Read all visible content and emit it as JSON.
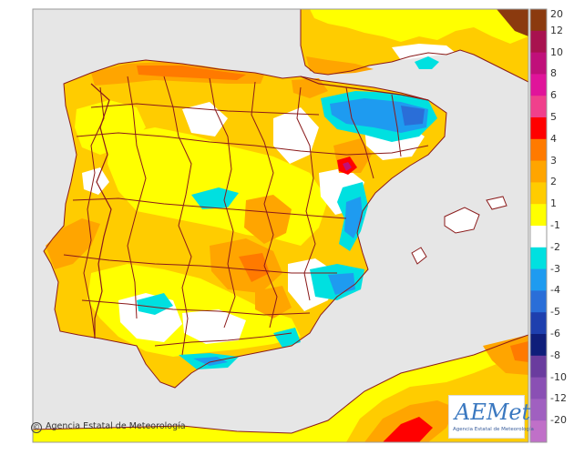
{
  "legend": {
    "labels": [
      "20",
      "12",
      "10",
      "8",
      "6",
      "5",
      "4",
      "3",
      "2",
      "1",
      "-1",
      "-2",
      "-3",
      "-4",
      "-5",
      "-6",
      "-8",
      "-10",
      "-12",
      "-20"
    ],
    "colors": [
      "#8b3a0f",
      "#a8124f",
      "#c0107a",
      "#e0149a",
      "#f0408c",
      "#ff0000",
      "#ff7a00",
      "#ffa500",
      "#ffcc00",
      "#ffff00",
      "#ffffff",
      "#00e0e0",
      "#1e9bf0",
      "#2a6ed8",
      "#1e3fae",
      "#0f1e7a",
      "#6a3c9e",
      "#8a50b4",
      "#a060c0",
      "#c070c8"
    ]
  },
  "copyright": "Agencia Estatal de Meteorología",
  "logo": {
    "name": "AEMet",
    "subtitle": "Agencia Estatal de Meteorología"
  },
  "colors": {
    "sea": "#e6e6e6",
    "land_out": "#cfcfcf",
    "yellow": "#ffff00",
    "gold": "#ffcc00",
    "orange": "#ffa500",
    "darkorange": "#ff7a00",
    "red": "#ff0000",
    "cyan": "#00e0e0",
    "blue": "#1e9bf0",
    "darkblue": "#2a6ed8",
    "border": "#8a1a1a"
  }
}
